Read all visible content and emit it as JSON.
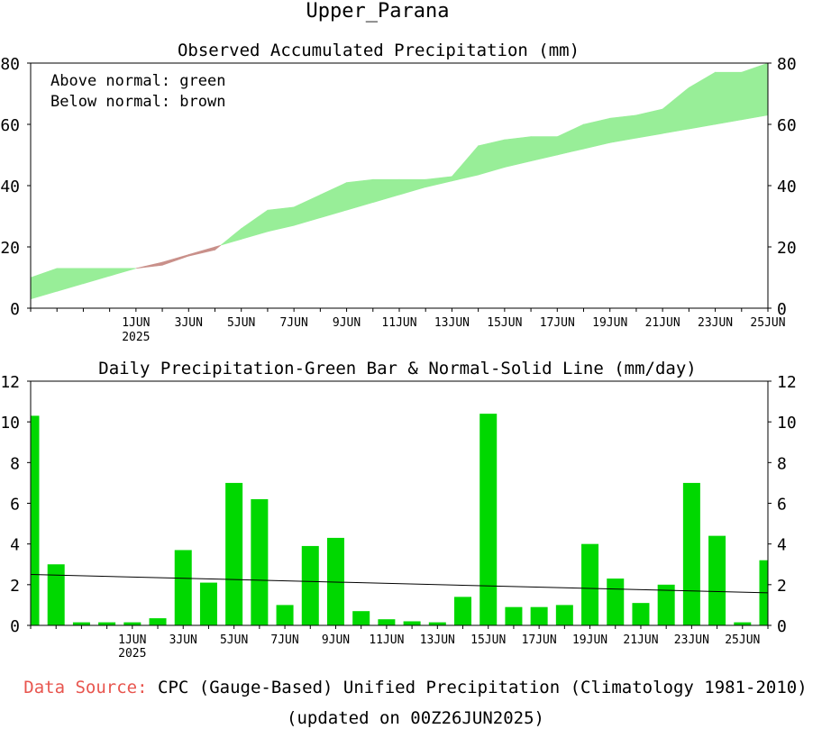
{
  "page_title": "Upper_Parana",
  "footer": {
    "source_label": "Data Source:",
    "source_text": "CPC (Gauge-Based) Unified Precipitation (Climatology 1981-2010)",
    "updated": "(updated on 00Z26JUN2025)"
  },
  "chart_data": [
    {
      "type": "area",
      "title": "Observed Accumulated Precipitation (mm)",
      "legend_lines": [
        "Above normal: green",
        "Below normal: brown"
      ],
      "colors": {
        "above": "#98ee98",
        "below": "#c9908a"
      },
      "ylim": [
        0,
        80
      ],
      "yticks": [
        0,
        20,
        40,
        60,
        80
      ],
      "x_start": "28MAY2025",
      "x_end": "25JUN2025",
      "xtick_labels": [
        "1JUN",
        "3JUN",
        "5JUN",
        "7JUN",
        "9JUN",
        "11JUN",
        "13JUN",
        "15JUN",
        "17JUN",
        "19JUN",
        "21JUN",
        "23JUN",
        "25JUN"
      ],
      "xtick_days": [
        4,
        6,
        8,
        10,
        12,
        14,
        16,
        18,
        20,
        22,
        24,
        26,
        28
      ],
      "year_label": "2025",
      "series": [
        {
          "name": "Observed accumulated",
          "values": [
            10,
            13,
            13,
            13,
            13,
            14,
            17,
            19,
            26,
            32,
            33,
            37,
            41,
            42,
            42,
            42,
            43,
            53,
            55,
            56,
            56,
            60,
            62,
            63,
            65,
            72,
            77,
            77,
            80
          ]
        },
        {
          "name": "Normal accumulated",
          "values": [
            3,
            5.5,
            8,
            10.5,
            13,
            15,
            17.5,
            20,
            22.5,
            25,
            27,
            29.5,
            32,
            34.5,
            37,
            39.5,
            41.5,
            43.5,
            46,
            48,
            50,
            52,
            54,
            55.5,
            57,
            58.5,
            60,
            61.5,
            63
          ]
        }
      ]
    },
    {
      "type": "bar",
      "title": "Daily Precipitation-Green Bar & Normal-Solid Line (mm/day)",
      "colors": {
        "bar": "#00d800",
        "line": "#000000"
      },
      "ylim": [
        0,
        12
      ],
      "yticks": [
        0,
        2,
        4,
        6,
        8,
        10,
        12
      ],
      "xtick_labels": [
        "1JUN",
        "3JUN",
        "5JUN",
        "7JUN",
        "9JUN",
        "11JUN",
        "13JUN",
        "15JUN",
        "17JUN",
        "19JUN",
        "21JUN",
        "23JUN",
        "25JUN"
      ],
      "xtick_days": [
        4,
        6,
        8,
        10,
        12,
        14,
        16,
        18,
        20,
        22,
        24,
        26,
        28
      ],
      "year_label": "2025",
      "series": [
        {
          "name": "Daily precipitation",
          "values": [
            10.3,
            3.0,
            0.15,
            0.15,
            0.15,
            0.35,
            3.7,
            2.1,
            7.0,
            6.2,
            1.0,
            3.9,
            4.3,
            0.7,
            0.3,
            0.2,
            0.15,
            1.4,
            10.4,
            0.9,
            0.9,
            1.0,
            4.0,
            2.3,
            1.1,
            2.0,
            7.0,
            4.4,
            0.15,
            3.2
          ]
        },
        {
          "name": "Normal daily",
          "values": [
            2.5,
            1.6
          ]
        }
      ]
    }
  ]
}
